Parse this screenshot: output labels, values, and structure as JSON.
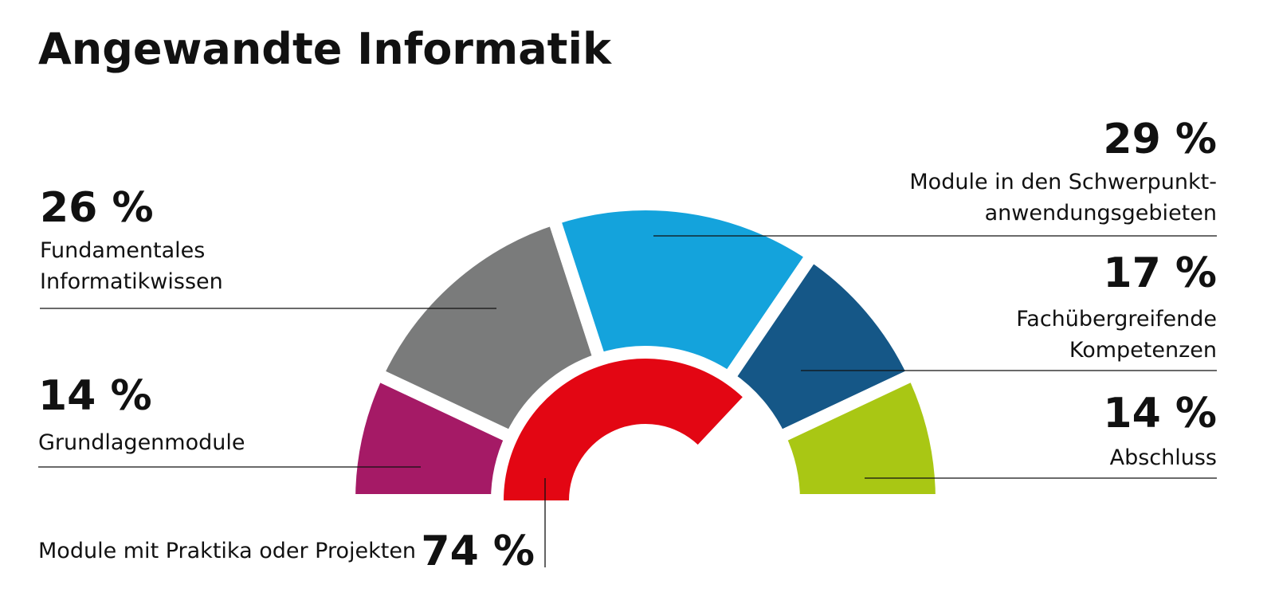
{
  "page": {
    "title": "Angewandte Informatik"
  },
  "colors": {
    "Grundlagenmodule": "#a51a66",
    "Fundamentales Informatikwissen": "#7a7b7b",
    "Module in den Schwerpunktanwendungsgebieten": "#14a3dc",
    "Fachübergreifende Kompetenzen": "#155787",
    "Abschluss": "#a9c714",
    "Module mit Praktika oder Projekten": "#e30613",
    "text": "#111111",
    "line": "#111111"
  },
  "chart_data": {
    "type": "pie",
    "title": "Angewandte Informatik",
    "outer_ring": [
      {
        "name": "Grundlagenmodule",
        "value": 14,
        "pct_label": "14 %",
        "label_lines": [
          "Grundlagenmodule"
        ]
      },
      {
        "name": "Fundamentales Informatikwissen",
        "value": 26,
        "pct_label": "26 %",
        "label_lines": [
          "Fundamentales",
          "Informatikwissen"
        ]
      },
      {
        "name": "Module in den Schwerpunktanwendungsgebieten",
        "value": 29,
        "pct_label": "29 %",
        "label_lines": [
          "Module in den Schwerpunkt-",
          "anwendungsgebieten"
        ]
      },
      {
        "name": "Fachübergreifende Kompetenzen",
        "value": 17,
        "pct_label": "17 %",
        "label_lines": [
          "Fachübergreifende",
          "Kompetenzen"
        ]
      },
      {
        "name": "Abschluss",
        "value": 14,
        "pct_label": "14 %",
        "label_lines": [
          "Abschluss"
        ]
      }
    ],
    "inner_ring": [
      {
        "name": "Module mit Praktika oder Projekten",
        "value": 74,
        "pct_label": "74 %",
        "label_lines": [
          "Module mit Praktika oder Projekten"
        ]
      }
    ]
  }
}
